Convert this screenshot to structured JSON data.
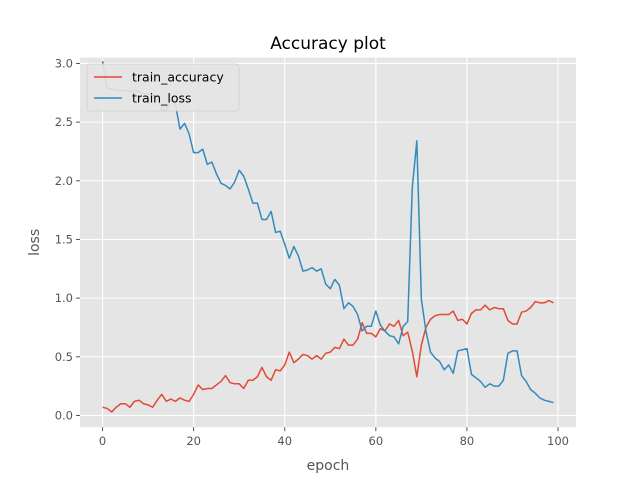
{
  "chart_data": {
    "type": "line",
    "title": "Accuracy plot",
    "xlabel": "epoch",
    "ylabel": "loss",
    "xlim": [
      -4.95,
      103.95
    ],
    "ylim": [
      -0.1,
      3.05
    ],
    "xticks": [
      0,
      20,
      40,
      60,
      80,
      100
    ],
    "yticks": [
      0.0,
      0.5,
      1.0,
      1.5,
      2.0,
      2.5,
      3.0
    ],
    "xtick_labels": [
      "0",
      "20",
      "40",
      "60",
      "80",
      "100"
    ],
    "ytick_labels": [
      "0.0",
      "0.5",
      "1.0",
      "1.5",
      "2.0",
      "2.5",
      "3.0"
    ],
    "grid": true,
    "legend_position": "upper-left",
    "x": [
      0,
      1,
      2,
      3,
      4,
      5,
      6,
      7,
      8,
      9,
      10,
      11,
      12,
      13,
      14,
      15,
      16,
      17,
      18,
      19,
      20,
      21,
      22,
      23,
      24,
      25,
      26,
      27,
      28,
      29,
      30,
      31,
      32,
      33,
      34,
      35,
      36,
      37,
      38,
      39,
      40,
      41,
      42,
      43,
      44,
      45,
      46,
      47,
      48,
      49,
      50,
      51,
      52,
      53,
      54,
      55,
      56,
      57,
      58,
      59,
      60,
      61,
      62,
      63,
      64,
      65,
      66,
      67,
      68,
      69,
      70,
      71,
      72,
      73,
      74,
      75,
      76,
      77,
      78,
      79,
      80,
      81,
      82,
      83,
      84,
      85,
      86,
      87,
      88,
      89,
      90,
      91,
      92,
      93,
      94,
      95,
      96,
      97,
      98,
      99
    ],
    "series": [
      {
        "name": "train_accuracy",
        "color": "#E24A33",
        "values": [
          0.07,
          0.06,
          0.03,
          0.07,
          0.1,
          0.1,
          0.07,
          0.12,
          0.13,
          0.1,
          0.09,
          0.07,
          0.13,
          0.18,
          0.12,
          0.14,
          0.12,
          0.15,
          0.13,
          0.12,
          0.18,
          0.26,
          0.22,
          0.23,
          0.23,
          0.26,
          0.29,
          0.34,
          0.28,
          0.27,
          0.27,
          0.23,
          0.3,
          0.3,
          0.33,
          0.41,
          0.33,
          0.3,
          0.39,
          0.38,
          0.43,
          0.54,
          0.45,
          0.48,
          0.52,
          0.51,
          0.48,
          0.51,
          0.48,
          0.53,
          0.54,
          0.58,
          0.57,
          0.65,
          0.6,
          0.6,
          0.65,
          0.79,
          0.7,
          0.7,
          0.67,
          0.74,
          0.72,
          0.78,
          0.76,
          0.81,
          0.68,
          0.71,
          0.55,
          0.33,
          0.6,
          0.75,
          0.82,
          0.85,
          0.86,
          0.86,
          0.86,
          0.89,
          0.81,
          0.82,
          0.78,
          0.87,
          0.9,
          0.9,
          0.94,
          0.9,
          0.92,
          0.91,
          0.91,
          0.81,
          0.78,
          0.78,
          0.88,
          0.89,
          0.92,
          0.97,
          0.96,
          0.96,
          0.98,
          0.96
        ]
      },
      {
        "name": "train_loss",
        "color": "#348ABD",
        "values": [
          3.02,
          2.79,
          2.78,
          2.77,
          2.77,
          2.77,
          2.76,
          2.77,
          2.76,
          2.74,
          2.74,
          2.73,
          2.72,
          2.6,
          2.6,
          2.69,
          2.65,
          2.44,
          2.49,
          2.4,
          2.24,
          2.24,
          2.27,
          2.14,
          2.16,
          2.06,
          1.98,
          1.96,
          1.93,
          1.99,
          2.09,
          2.04,
          1.93,
          1.81,
          1.81,
          1.67,
          1.67,
          1.74,
          1.56,
          1.57,
          1.46,
          1.34,
          1.44,
          1.36,
          1.23,
          1.24,
          1.26,
          1.23,
          1.25,
          1.12,
          1.08,
          1.16,
          1.11,
          0.91,
          0.96,
          0.93,
          0.86,
          0.72,
          0.76,
          0.76,
          0.89,
          0.77,
          0.72,
          0.68,
          0.67,
          0.61,
          0.76,
          0.8,
          1.94,
          2.34,
          0.99,
          0.72,
          0.54,
          0.49,
          0.46,
          0.39,
          0.43,
          0.36,
          0.55,
          0.56,
          0.57,
          0.35,
          0.32,
          0.29,
          0.24,
          0.27,
          0.25,
          0.25,
          0.3,
          0.53,
          0.55,
          0.55,
          0.34,
          0.29,
          0.22,
          0.19,
          0.15,
          0.13,
          0.12,
          0.11
        ]
      }
    ]
  }
}
